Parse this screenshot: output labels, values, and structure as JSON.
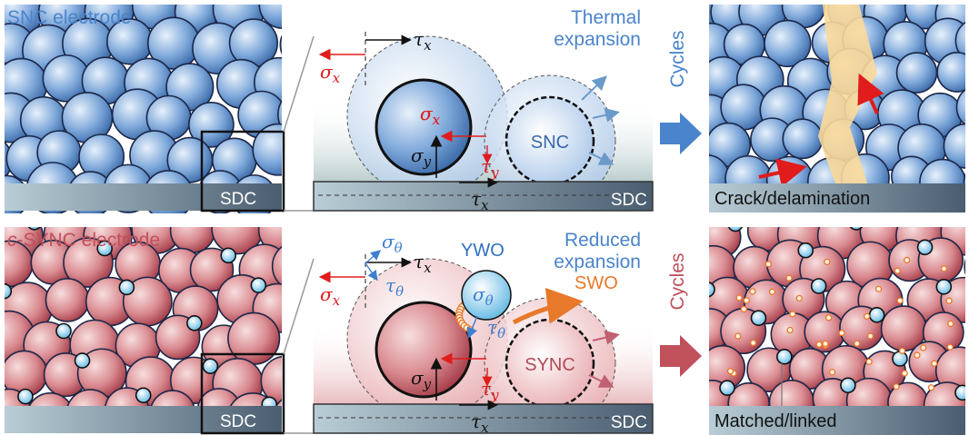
{
  "top": {
    "panel_title": "SNC electrode",
    "substrate_label": "SDC",
    "zoom": {
      "particle": "SNC",
      "substrate_label": "SDC",
      "annotation": [
        "Thermal",
        "expansion"
      ],
      "stress_labels": {
        "sigma_x": {
          "symbol": "σ",
          "sub": "x"
        },
        "tau_x": {
          "symbol": "τ",
          "sub": "x"
        },
        "sigma_y": {
          "symbol": "σ",
          "sub": "y"
        },
        "tau_y": {
          "symbol": "τ",
          "sub": "y"
        }
      }
    },
    "arrow_label": "Cycles",
    "result_label": "Crack/delamination"
  },
  "bottom": {
    "panel_title": {
      "prefix": "c",
      "rest": "-SYNC electrode"
    },
    "substrate_label": "SDC",
    "zoom": {
      "particle": "SYNC",
      "additive": "YWO",
      "interlayer": "SWO",
      "substrate_label": "SDC",
      "annotation": [
        "Reduced",
        "expansion"
      ],
      "stress_labels": {
        "sigma_x": {
          "symbol": "σ",
          "sub": "x"
        },
        "tau_x": {
          "symbol": "τ",
          "sub": "x"
        },
        "sigma_y": {
          "symbol": "σ",
          "sub": "y"
        },
        "tau_y": {
          "symbol": "τ",
          "sub": "y"
        },
        "sigma_theta": {
          "symbol": "σ",
          "sub": "θ"
        },
        "tau_theta": {
          "symbol": "τ",
          "sub": "θ"
        }
      }
    },
    "arrow_label": "Cycles",
    "result_label": "Matched/linked"
  }
}
